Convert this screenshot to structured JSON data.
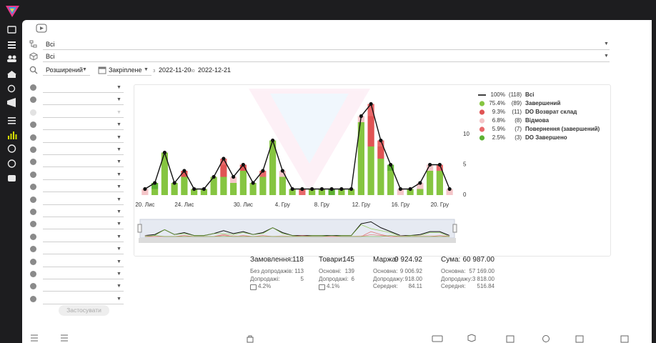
{
  "filters": {
    "select_1": "Всі",
    "select_2": "Всі",
    "mode": "Розширений",
    "period": "Закріплене",
    "from_label": "з",
    "date_from": "2022-11-20",
    "to_label": "по",
    "date_to": "2022-12-21",
    "apply": "Застосувати"
  },
  "chart_data": {
    "type": "bar",
    "stacked": true,
    "categories": [
      "20. Лис",
      null,
      null,
      null,
      "24. Лис",
      null,
      null,
      null,
      null,
      null,
      "30. Лис",
      null,
      null,
      null,
      "4. Гру",
      null,
      null,
      null,
      "8. Гру",
      null,
      null,
      null,
      "12. Гру",
      null,
      null,
      null,
      "16. Гру",
      null,
      null,
      null,
      "20. Гру",
      null
    ],
    "ylim": [
      0,
      16
    ],
    "yticks": [
      0,
      5,
      10
    ],
    "series": [
      {
        "name": "Всі",
        "type": "line",
        "color": "#111111",
        "percent_label": "100%",
        "count_label": "(118)",
        "values": [
          1,
          2,
          7,
          2,
          4,
          1,
          1,
          3,
          6,
          3,
          5,
          2,
          4,
          9,
          4,
          1,
          1,
          1,
          1,
          1,
          1,
          1,
          13,
          15,
          9,
          5,
          1,
          1,
          2,
          5,
          5,
          1
        ]
      },
      {
        "name": "Завершений",
        "color": "#86c541",
        "percent_label": "75.4%",
        "count_label": "(89)",
        "values": [
          0,
          1,
          7,
          2,
          3,
          1,
          1,
          3,
          3,
          2,
          4,
          2,
          3,
          9,
          3,
          1,
          0,
          1,
          1,
          0,
          1,
          1,
          12,
          8,
          6,
          4,
          0,
          1,
          1,
          4,
          4,
          0
        ]
      },
      {
        "name": "DO Возврат склад",
        "color": "#e05454",
        "percent_label": "9.3%",
        "count_label": "(11)",
        "values": [
          0,
          0,
          0,
          0,
          1,
          0,
          0,
          0,
          2,
          0,
          1,
          0,
          0,
          0,
          0,
          0,
          0,
          0,
          0,
          0,
          0,
          0,
          0,
          5,
          2,
          0,
          0,
          0,
          0,
          0,
          0,
          0
        ]
      },
      {
        "name": "Відмова",
        "color": "#f4c5c8",
        "percent_label": "6.8%",
        "count_label": "(8)",
        "values": [
          1,
          0,
          0,
          0,
          0,
          0,
          0,
          0,
          0,
          1,
          0,
          0,
          0,
          0,
          1,
          0,
          0,
          0,
          0,
          0,
          0,
          0,
          1,
          0,
          0,
          0,
          1,
          0,
          1,
          1,
          0,
          1
        ]
      },
      {
        "name": "Повернення (завершений)",
        "color": "#e8686a",
        "percent_label": "5.9%",
        "count_label": "(7)",
        "values": [
          0,
          0,
          0,
          0,
          0,
          0,
          0,
          0,
          1,
          0,
          0,
          0,
          1,
          0,
          0,
          0,
          1,
          0,
          0,
          0,
          0,
          0,
          0,
          2,
          1,
          0,
          0,
          0,
          0,
          0,
          1,
          0
        ]
      },
      {
        "name": "DO Завершено",
        "color": "#5db133",
        "percent_label": "2.5%",
        "count_label": "(3)",
        "values": [
          0,
          1,
          0,
          0,
          0,
          0,
          0,
          0,
          0,
          0,
          0,
          0,
          0,
          0,
          0,
          0,
          0,
          0,
          0,
          1,
          0,
          0,
          0,
          0,
          0,
          1,
          0,
          0,
          0,
          0,
          0,
          0
        ]
      }
    ]
  },
  "stats": [
    {
      "title": "Замовлення:",
      "value": 118,
      "rows": [
        {
          "label": "Без допродажів:",
          "value": 113
        },
        {
          "label": "Допродажі:",
          "value": 5
        }
      ],
      "share": "4.2%"
    },
    {
      "title": "Товари:",
      "value": 145,
      "rows": [
        {
          "label": "Основні:",
          "value": 139
        },
        {
          "label": "Допродажі:",
          "value": 6
        }
      ],
      "share": "4.1%"
    },
    {
      "title": "Маржа:",
      "value": "9 924.92",
      "rows": [
        {
          "label": "Основна:",
          "value": "9 006.92"
        },
        {
          "label": "Допродажу:",
          "value": "918.00"
        },
        {
          "label": "Середня:",
          "value": "84.11"
        }
      ]
    },
    {
      "title": "Сума:",
      "value": "60 987.00",
      "rows": [
        {
          "label": "Основна:",
          "value": "57 169.00"
        },
        {
          "label": "Допродажу:",
          "value": "3 818.00"
        },
        {
          "label": "Середня:",
          "value": "516.84"
        }
      ]
    }
  ]
}
